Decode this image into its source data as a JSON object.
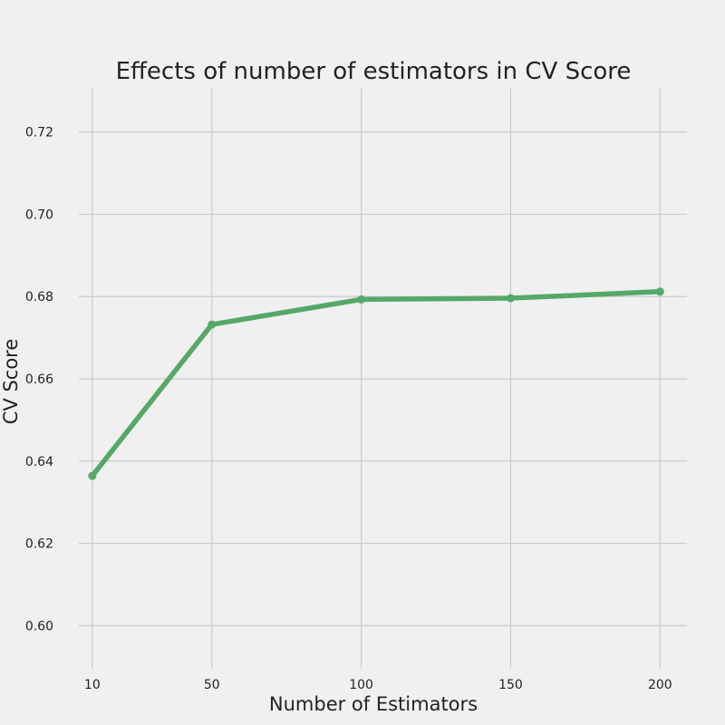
{
  "chart_data": {
    "type": "line",
    "title": "Effects of number of estimators in CV Score",
    "xlabel": "Number of Estimators",
    "ylabel": "CV Score",
    "x": [
      10,
      50,
      100,
      150,
      200
    ],
    "x_tick_labels": [
      "10",
      "50",
      "100",
      "150",
      "200"
    ],
    "y_ticks": [
      0.6,
      0.62,
      0.64,
      0.66,
      0.68,
      0.7,
      0.72
    ],
    "y_tick_labels": [
      "0.60",
      "0.62",
      "0.64",
      "0.66",
      "0.68",
      "0.70",
      "0.72"
    ],
    "xlim": [
      5.5,
      209
    ],
    "ylim": [
      0.5895,
      0.7305
    ],
    "series": [
      {
        "values": [
          0.6364,
          0.6732,
          0.6793,
          0.6796,
          0.6812
        ],
        "color": "#55a868"
      }
    ],
    "grid": true,
    "legend": "none",
    "background_color": "#f0f0f0",
    "grid_color": "#cbcbcb",
    "text_color": "#222222"
  }
}
